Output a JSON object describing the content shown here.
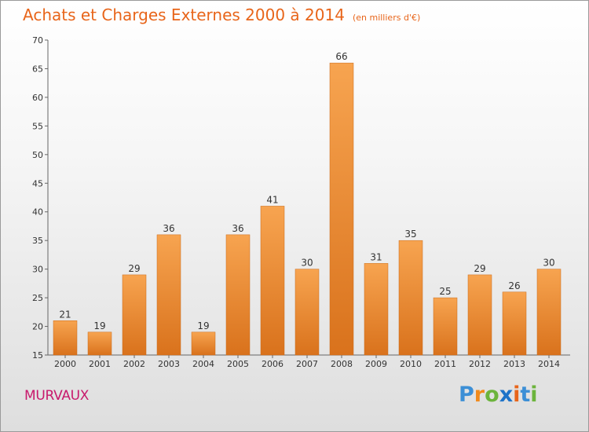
{
  "header": {
    "title": "Achats et Charges Externes 2000 à 2014",
    "subtitle": "(en milliers d'€)"
  },
  "footer": {
    "place": "MURVAUX",
    "logo": {
      "letters": [
        "P",
        "r",
        "o",
        "x",
        "i",
        "t",
        "i"
      ],
      "colors": [
        "#3c8fd6",
        "#f08a1c",
        "#6cb43c",
        "#1e73c8",
        "#e8651a",
        "#3c8fd6",
        "#6cb43c"
      ]
    }
  },
  "colors": {
    "bar_light": "#f7a450",
    "bar_dark": "#d9721c",
    "title": "#e8651a"
  },
  "chart_data": {
    "type": "bar",
    "categories": [
      "2000",
      "2001",
      "2002",
      "2003",
      "2004",
      "2005",
      "2006",
      "2007",
      "2008",
      "2009",
      "2010",
      "2011",
      "2012",
      "2013",
      "2014"
    ],
    "values": [
      21,
      19,
      29,
      36,
      19,
      36,
      41,
      30,
      66,
      31,
      35,
      25,
      29,
      26,
      30
    ],
    "data_labels": [
      "21",
      "19",
      "29",
      "36",
      "19",
      "36",
      "41",
      "30",
      "66",
      "31",
      "35",
      "25",
      "29",
      "26",
      "30"
    ],
    "yticks": [
      "15",
      "20",
      "25",
      "30",
      "35",
      "40",
      "45",
      "50",
      "55",
      "60",
      "65",
      "70"
    ],
    "ylim": [
      15,
      70
    ],
    "grid": false,
    "legend": "none"
  }
}
